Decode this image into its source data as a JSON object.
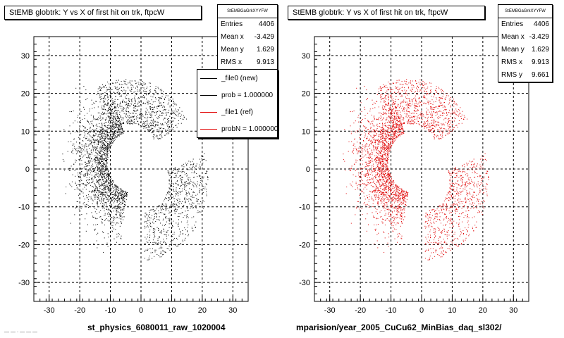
{
  "colors": {
    "series_left": "#000000",
    "series_right": "#e00000",
    "grid": "#000000"
  },
  "left": {
    "title": "StEMB globtrk: Y vs X of first hit on trk, ftpcW",
    "stats": {
      "title": "StEMBGaGrkXYYFW",
      "rows": [
        {
          "label": "Entries",
          "value": "4406"
        },
        {
          "label": "Mean x",
          "value": "-3.429"
        },
        {
          "label": "Mean y",
          "value": "1.629"
        },
        {
          "label": "RMS x",
          "value": "9.913"
        }
      ]
    },
    "legend": [
      {
        "label": "_file0 (new)",
        "color": "#000000"
      },
      {
        "label": "prob = 1.000000",
        "color": "#000000"
      },
      {
        "label": "_file1 (ref)",
        "color": "#e00000"
      },
      {
        "label": "probN = 1.000000",
        "color": "#e00000"
      }
    ],
    "footer": "st_physics_6080011_raw_1020004"
  },
  "right": {
    "title": "StEMB globtrk: Y vs X of first hit on trk, ftpcW",
    "stats": {
      "title": "StEMBGaGrkXYYFW",
      "rows": [
        {
          "label": "Entries",
          "value": "4406"
        },
        {
          "label": "Mean x",
          "value": "-3.429"
        },
        {
          "label": "Mean y",
          "value": "1.629"
        },
        {
          "label": "RMS x",
          "value": "9.913"
        },
        {
          "label": "RMS y",
          "value": "9.661"
        }
      ]
    },
    "footer": "mparision/year_2005_CuCu62_MinBias_daq_sl302/"
  },
  "bottom_left_text": "— — · — — —",
  "chart_data": [
    {
      "type": "scatter",
      "title": "StEMB globtrk: Y vs X of first hit on trk, ftpcW",
      "xlim": [
        -35,
        35
      ],
      "ylim": [
        -35,
        35
      ],
      "xticks": [
        -30,
        -20,
        -10,
        0,
        10,
        20,
        30
      ],
      "yticks": [
        -30,
        -20,
        -10,
        0,
        10,
        20,
        30
      ],
      "grid": true,
      "series": [
        {
          "name": "_file0 (new)",
          "color": "#000000",
          "entries": 4406,
          "mean_x": -3.429,
          "mean_y": 1.629,
          "rms_x": 9.913
        }
      ],
      "legend_placement": "top-right"
    },
    {
      "type": "scatter",
      "title": "StEMB globtrk: Y vs X of first hit on trk, ftpcW",
      "xlim": [
        -35,
        35
      ],
      "ylim": [
        -35,
        35
      ],
      "xticks": [
        -30,
        -20,
        -10,
        0,
        10,
        20,
        30
      ],
      "yticks": [
        -30,
        -20,
        -10,
        0,
        10,
        20,
        30
      ],
      "grid": true,
      "series": [
        {
          "name": "_file1 (ref)",
          "color": "#e00000",
          "entries": 4406,
          "mean_x": -3.429,
          "mean_y": 1.629,
          "rms_x": 9.913,
          "rms_y": 9.661
        }
      ]
    }
  ]
}
